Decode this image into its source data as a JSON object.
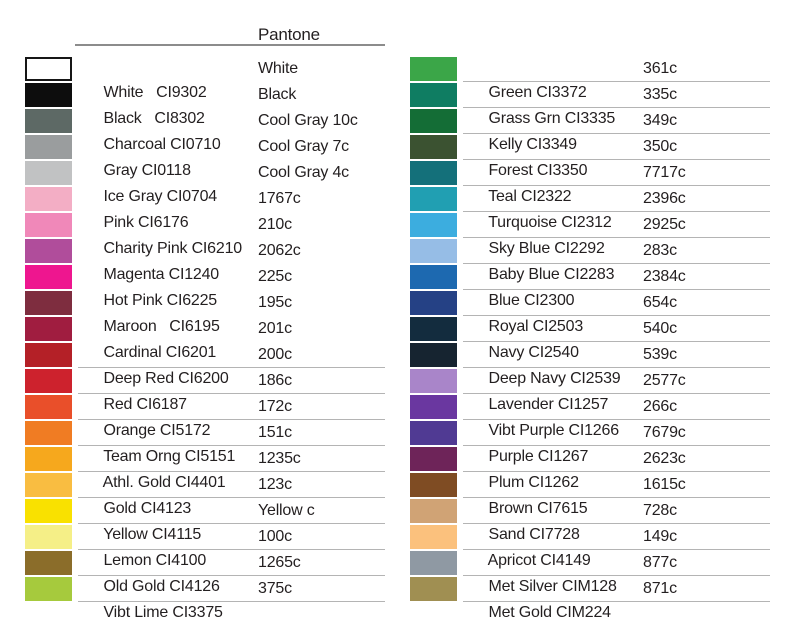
{
  "header": {
    "title": "Pantone",
    "rule_color": "#8c8c8c",
    "text_color": "#231f20",
    "underline_color": "#b4b4b4"
  },
  "columns": [
    {
      "name": "left",
      "rows": [
        {
          "label": "White   CI9302",
          "pantone": "White",
          "swatch_color": "#ffffff",
          "swatch_border": true,
          "underline": false
        },
        {
          "label": "Black   CI8302",
          "pantone": "Black",
          "swatch_color": "#0d0d0d",
          "swatch_border": false,
          "underline": false
        },
        {
          "label": "Charcoal CI0710",
          "pantone": "Cool Gray 10c",
          "swatch_color": "#5d6965",
          "swatch_border": false,
          "underline": false
        },
        {
          "label": "Gray CI0118",
          "pantone": "Cool Gray 7c",
          "swatch_color": "#9a9d9e",
          "swatch_border": false,
          "underline": false
        },
        {
          "label": "Ice Gray CI0704",
          "pantone": "Cool Gray 4c",
          "swatch_color": "#c1c2c3",
          "swatch_border": false,
          "underline": false
        },
        {
          "label": "Pink CI6176",
          "pantone": "1767c",
          "swatch_color": "#f3aec5",
          "swatch_border": false,
          "underline": false
        },
        {
          "label": "Charity Pink CI6210",
          "pantone": "210c",
          "swatch_color": "#f088b9",
          "swatch_border": false,
          "underline": false
        },
        {
          "label": "Magenta CI1240",
          "pantone": "2062c",
          "swatch_color": "#b04d9b",
          "swatch_border": false,
          "underline": false
        },
        {
          "label": "Hot Pink CI6225",
          "pantone": "225c",
          "swatch_color": "#ee168f",
          "swatch_border": false,
          "underline": false
        },
        {
          "label": "Maroon   CI6195",
          "pantone": "195c",
          "swatch_color": "#7e2d3f",
          "swatch_border": false,
          "underline": false
        },
        {
          "label": "Cardinal CI6201",
          "pantone": "201c",
          "swatch_color": "#a01d40",
          "swatch_border": false,
          "underline": false
        },
        {
          "label": "Deep Red CI6200",
          "pantone": "200c",
          "swatch_color": "#b42027",
          "swatch_border": false,
          "underline": true
        },
        {
          "label": "Red CI6187",
          "pantone": "186c",
          "swatch_color": "#cd222d",
          "swatch_border": false,
          "underline": true
        },
        {
          "label": "Orange CI5172",
          "pantone": "172c",
          "swatch_color": "#e94f2a",
          "swatch_border": false,
          "underline": true
        },
        {
          "label": "Team Orng CI5151",
          "pantone": "151c",
          "swatch_color": "#f07c23",
          "swatch_border": false,
          "underline": true
        },
        {
          "label": "Athl. Gold CI4401",
          "pantone": "1235c",
          "swatch_color": "#f6a81d",
          "swatch_border": false,
          "underline": true
        },
        {
          "label": "Gold CI4123",
          "pantone": "123c",
          "swatch_color": "#f9bd41",
          "swatch_border": false,
          "underline": true
        },
        {
          "label": "Yellow CI4115",
          "pantone": "Yellow c",
          "swatch_color": "#f9e100",
          "swatch_border": false,
          "underline": true
        },
        {
          "label": "Lemon CI4100",
          "pantone": "100c",
          "swatch_color": "#f5ef87",
          "swatch_border": false,
          "underline": true
        },
        {
          "label": "Old Gold CI4126",
          "pantone": "1265c",
          "swatch_color": "#8b6d2a",
          "swatch_border": false,
          "underline": true
        },
        {
          "label": "Vibt Lime CI3375",
          "pantone": "375c",
          "swatch_color": "#a6ca3d",
          "swatch_border": false,
          "underline": true
        }
      ]
    },
    {
      "name": "right",
      "rows": [
        {
          "label": "Green CI3372",
          "pantone": "361c",
          "swatch_color": "#3ba648",
          "swatch_border": false,
          "underline": true
        },
        {
          "label": "Grass Grn CI3335",
          "pantone": "335c",
          "swatch_color": "#0f7d62",
          "swatch_border": false,
          "underline": true
        },
        {
          "label": "Kelly CI3349",
          "pantone": "349c",
          "swatch_color": "#146d36",
          "swatch_border": false,
          "underline": true
        },
        {
          "label": "Forest CI3350",
          "pantone": "350c",
          "swatch_color": "#3b5231",
          "swatch_border": false,
          "underline": true
        },
        {
          "label": "Teal CI2322",
          "pantone": "7717c",
          "swatch_color": "#14707a",
          "swatch_border": false,
          "underline": true
        },
        {
          "label": "Turquoise CI2312",
          "pantone": "2396c",
          "swatch_color": "#219fb2",
          "swatch_border": false,
          "underline": true
        },
        {
          "label": "Sky Blue CI2292",
          "pantone": "2925c",
          "swatch_color": "#3caddf",
          "swatch_border": false,
          "underline": true
        },
        {
          "label": "Baby Blue CI2283",
          "pantone": "283c",
          "swatch_color": "#96bde6",
          "swatch_border": false,
          "underline": true
        },
        {
          "label": "Blue CI2300",
          "pantone": "2384c",
          "swatch_color": "#1d69b0",
          "swatch_border": false,
          "underline": true
        },
        {
          "label": "Royal CI2503",
          "pantone": "654c",
          "swatch_color": "#254185",
          "swatch_border": false,
          "underline": true
        },
        {
          "label": "Navy CI2540",
          "pantone": "540c",
          "swatch_color": "#132c3e",
          "swatch_border": false,
          "underline": true
        },
        {
          "label": "Deep Navy CI2539",
          "pantone": "539c",
          "swatch_color": "#162430",
          "swatch_border": false,
          "underline": true
        },
        {
          "label": "Lavender CI1257",
          "pantone": "2577c",
          "swatch_color": "#a985c9",
          "swatch_border": false,
          "underline": true
        },
        {
          "label": "Vibt Purple CI1266",
          "pantone": "266c",
          "swatch_color": "#6a37a0",
          "swatch_border": false,
          "underline": true
        },
        {
          "label": "Purple CI1267",
          "pantone": "7679c",
          "swatch_color": "#503a93",
          "swatch_border": false,
          "underline": true
        },
        {
          "label": "Plum CI1262",
          "pantone": "2623c",
          "swatch_color": "#6e2459",
          "swatch_border": false,
          "underline": true
        },
        {
          "label": "Brown CI7615",
          "pantone": "1615c",
          "swatch_color": "#7f4c23",
          "swatch_border": false,
          "underline": true
        },
        {
          "label": "Sand CI7728",
          "pantone": "728c",
          "swatch_color": "#d0a375",
          "swatch_border": false,
          "underline": true
        },
        {
          "label": "Apricot CI4149",
          "pantone": "149c",
          "swatch_color": "#fbc17d",
          "swatch_border": false,
          "underline": true
        },
        {
          "label": "Met Silver CIM128",
          "pantone": "877c",
          "swatch_color": "#8f99a3",
          "swatch_border": false,
          "underline": true
        },
        {
          "label": "Met Gold CIM224",
          "pantone": "871c",
          "swatch_color": "#a08f52",
          "swatch_border": false,
          "underline": true
        }
      ]
    }
  ]
}
